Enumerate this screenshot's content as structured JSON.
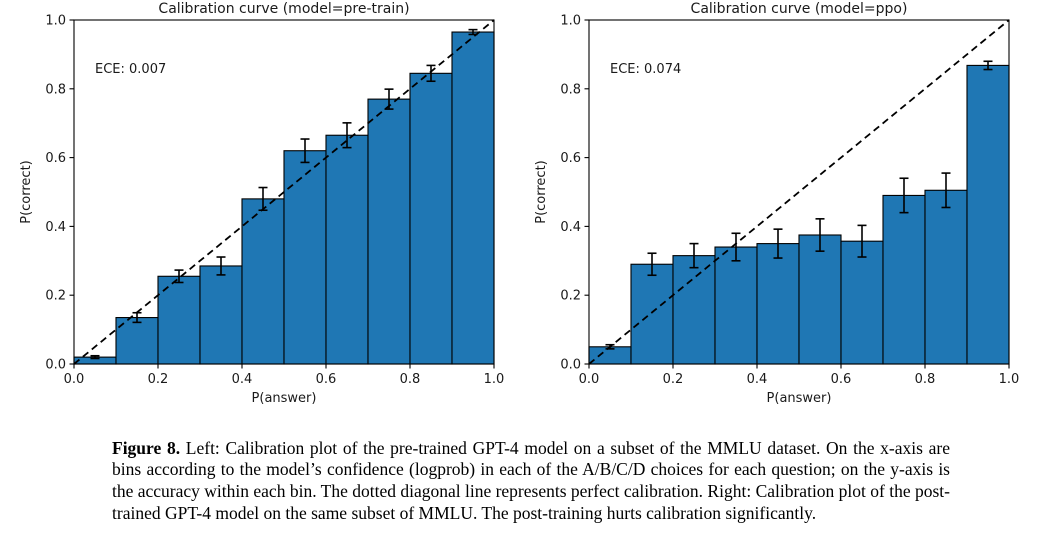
{
  "figure": {
    "caption_label": "Figure 8.",
    "caption_text": "Left: Calibration plot of the pre-trained GPT-4 model on a subset of the MMLU dataset. On the x-axis are bins according to the model’s confidence (logprob) in each of the A/B/C/D choices for each question; on the y-axis is the accuracy within each bin. The dotted diagonal line represents perfect calibration. Right: Calibration plot of the post-trained GPT-4 model on the same subset of MMLU. The post-training hurts calibration significantly."
  },
  "chart_data": [
    {
      "type": "bar",
      "title": "Calibration curve (model=pre-train)",
      "annotation": "ECE: 0.007",
      "xlabel": "P(answer)",
      "ylabel": "P(correct)",
      "xlim": [
        0.0,
        1.0
      ],
      "ylim": [
        0.0,
        1.0
      ],
      "tick_values": [
        0.0,
        0.2,
        0.4,
        0.6,
        0.8,
        1.0
      ],
      "tick_labels": [
        "0.0",
        "0.2",
        "0.4",
        "0.6",
        "0.8",
        "1.0"
      ],
      "bin_edges": [
        0.0,
        0.1,
        0.2,
        0.3,
        0.4,
        0.5,
        0.6,
        0.7,
        0.8,
        0.9,
        1.0
      ],
      "values": [
        0.02,
        0.135,
        0.255,
        0.285,
        0.48,
        0.62,
        0.665,
        0.77,
        0.845,
        0.965
      ],
      "errors": [
        0.004,
        0.014,
        0.018,
        0.026,
        0.033,
        0.034,
        0.036,
        0.029,
        0.023,
        0.007
      ],
      "diagonal": {
        "style": "dashed",
        "from": [
          0,
          0
        ],
        "to": [
          1,
          1
        ],
        "meaning": "perfect calibration"
      },
      "grid": false,
      "legend": null,
      "bar_color": "#1f77b4",
      "bar_edge_color": "#000000",
      "error_color": "#000000",
      "text_color": "#1a1a1a"
    },
    {
      "type": "bar",
      "title": "Calibration curve (model=ppo)",
      "annotation": "ECE: 0.074",
      "xlabel": "P(answer)",
      "ylabel": "P(correct)",
      "xlim": [
        0.0,
        1.0
      ],
      "ylim": [
        0.0,
        1.0
      ],
      "tick_values": [
        0.0,
        0.2,
        0.4,
        0.6,
        0.8,
        1.0
      ],
      "tick_labels": [
        "0.0",
        "0.2",
        "0.4",
        "0.6",
        "0.8",
        "1.0"
      ],
      "bin_edges": [
        0.0,
        0.1,
        0.2,
        0.3,
        0.4,
        0.5,
        0.6,
        0.7,
        0.8,
        0.9,
        1.0
      ],
      "values": [
        0.05,
        0.29,
        0.315,
        0.34,
        0.35,
        0.375,
        0.357,
        0.49,
        0.505,
        0.868
      ],
      "errors": [
        0.006,
        0.032,
        0.035,
        0.04,
        0.042,
        0.047,
        0.046,
        0.05,
        0.05,
        0.012
      ],
      "diagonal": {
        "style": "dashed",
        "from": [
          0,
          0
        ],
        "to": [
          1,
          1
        ],
        "meaning": "perfect calibration"
      },
      "grid": false,
      "legend": null,
      "bar_color": "#1f77b4",
      "bar_edge_color": "#000000",
      "error_color": "#000000",
      "text_color": "#1a1a1a"
    }
  ]
}
